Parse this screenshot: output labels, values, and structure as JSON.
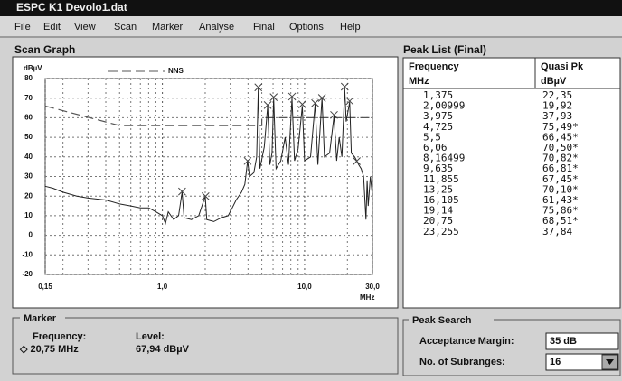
{
  "title_bar": "ESPC K1  Devolo1.dat",
  "menu": [
    "File",
    "Edit",
    "View",
    "Scan",
    "Marker",
    "Analyse",
    "Final",
    "Options",
    "Help"
  ],
  "scan_graph_label": "Scan Graph",
  "chart_data": {
    "type": "line",
    "y_label": "dBµV",
    "x_label": "MHz",
    "log_x": true,
    "grid": true,
    "xlim": [
      0.15,
      30
    ],
    "xticks": [
      {
        "value": 0.15,
        "label": "0,15"
      },
      {
        "value": 1,
        "label": "1,0"
      },
      {
        "value": 10,
        "label": "10,0"
      },
      {
        "value": 30,
        "label": "30,0"
      }
    ],
    "xminor": [
      0.2,
      0.3,
      0.4,
      0.5,
      0.6,
      0.7,
      0.8,
      0.9,
      2,
      3,
      4,
      5,
      6,
      7,
      8,
      9,
      20
    ],
    "ylim": [
      -20,
      80
    ],
    "yticks": [
      -20,
      -10,
      0,
      10,
      20,
      30,
      40,
      50,
      60,
      70,
      80
    ],
    "series": [
      {
        "name": "NNS",
        "color": "#555555",
        "dashed": true,
        "x": [
          0.15,
          0.5,
          5,
          5,
          30
        ],
        "values": [
          66,
          56,
          56,
          60,
          60
        ]
      },
      {
        "color": "#222222",
        "dashed": false,
        "x": [
          0.15,
          0.17,
          0.2,
          0.25,
          0.3,
          0.4,
          0.5,
          0.6,
          0.7,
          0.8,
          0.9,
          1.0,
          1.05,
          1.1,
          1.2,
          1.3,
          1.375,
          1.42,
          1.6,
          1.8,
          2.0,
          2.05,
          2.3,
          2.6,
          2.9,
          3.1,
          3.3,
          3.6,
          3.8,
          3.975,
          4.1,
          4.4,
          4.6,
          4.725,
          4.85,
          5.2,
          5.5,
          5.7,
          5.9,
          6.06,
          6.3,
          6.8,
          7.3,
          7.7,
          8.16,
          8.5,
          9.0,
          9.635,
          10,
          11,
          11.855,
          12.4,
          13.25,
          13.8,
          15,
          16.105,
          16.8,
          17.5,
          18.3,
          19.14,
          19.6,
          20.75,
          21.3,
          22.5,
          23.255,
          24,
          25,
          26,
          27,
          27.5,
          28,
          29,
          30
        ],
        "values": [
          25,
          24,
          22,
          20,
          19,
          18,
          16,
          15,
          14,
          14,
          12,
          10,
          6,
          12,
          8,
          10,
          22,
          9,
          8,
          10,
          20,
          8,
          7,
          9,
          10,
          14,
          18,
          22,
          26,
          38,
          30,
          32,
          40,
          75,
          34,
          45,
          66,
          36,
          42,
          70,
          34,
          38,
          50,
          36,
          70,
          38,
          44,
          66,
          38,
          40,
          67,
          36,
          70,
          40,
          42,
          61,
          38,
          50,
          40,
          75,
          58,
          68,
          42,
          40,
          38,
          36,
          34,
          30,
          8,
          28,
          15,
          30,
          20
        ]
      }
    ],
    "peaks": {
      "x": [
        1.375,
        2.00999,
        3.975,
        4.725,
        5.5,
        6.06,
        8.16499,
        9.635,
        11.855,
        13.25,
        16.105,
        19.14,
        20.75,
        23.255
      ],
      "values": [
        22.35,
        19.92,
        37.93,
        75.49,
        66.45,
        70.5,
        70.82,
        66.81,
        67.45,
        70.1,
        61.43,
        75.86,
        68.51,
        37.84
      ]
    }
  },
  "peak_list": {
    "label": "Peak List (Final)",
    "header": [
      [
        "Frequency",
        "Quasi Pk"
      ],
      [
        "MHz",
        "dBµV"
      ]
    ],
    "rows": [
      [
        "1,375",
        "22,35"
      ],
      [
        "2,00999",
        "19,92"
      ],
      [
        "3,975",
        "37,93"
      ],
      [
        "4,725",
        "75,49*"
      ],
      [
        "5,5",
        "66,45*"
      ],
      [
        "6,06",
        "70,50*"
      ],
      [
        "8,16499",
        "70,82*"
      ],
      [
        "9,635",
        "66,81*"
      ],
      [
        "11,855",
        "67,45*"
      ],
      [
        "13,25",
        "70,10*"
      ],
      [
        "16,105",
        "61,43*"
      ],
      [
        "19,14",
        "75,86*"
      ],
      [
        "20,75",
        "68,51*"
      ],
      [
        "23,255",
        "37,84"
      ]
    ]
  },
  "marker": {
    "label": "Marker",
    "frequency_label": "Frequency:",
    "frequency": "◇ 20,75 MHz",
    "level_label": "Level:",
    "level": "67,94 dBµV"
  },
  "peak_search": {
    "label": "Peak Search",
    "margin_label": "Acceptance Margin:",
    "margin": "35 dB",
    "subranges_label": "No. of Subranges:",
    "subranges": "16"
  }
}
